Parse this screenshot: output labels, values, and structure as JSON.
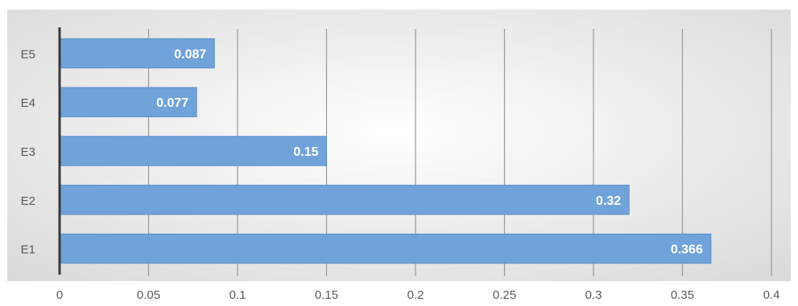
{
  "chart_data": {
    "type": "bar",
    "orientation": "horizontal",
    "categories": [
      "E1",
      "E2",
      "E3",
      "E4",
      "E5"
    ],
    "values": [
      0.366,
      0.32,
      0.15,
      0.077,
      0.087
    ],
    "value_labels": [
      "0.366",
      "0.32",
      "0.15",
      "0.077",
      "0.087"
    ],
    "title": "",
    "xlabel": "",
    "ylabel": "",
    "xlim": [
      0,
      0.4
    ],
    "x_ticks": [
      0,
      0.05,
      0.1,
      0.15,
      0.2,
      0.25,
      0.3,
      0.35,
      0.4
    ],
    "x_tick_labels": [
      "0",
      "0.05",
      "0.1",
      "0.15",
      "0.2",
      "0.25",
      "0.3",
      "0.35",
      "0.4"
    ],
    "grid": "vertical",
    "legend": "none",
    "colors": {
      "bar": "#6fa3da",
      "bar_edge": "#5b8fc9",
      "grid": "#9a9a9a",
      "axis": "#3a3a3a",
      "bg_center": "#ffffff",
      "bg_edge": "#d9d9d9"
    }
  }
}
